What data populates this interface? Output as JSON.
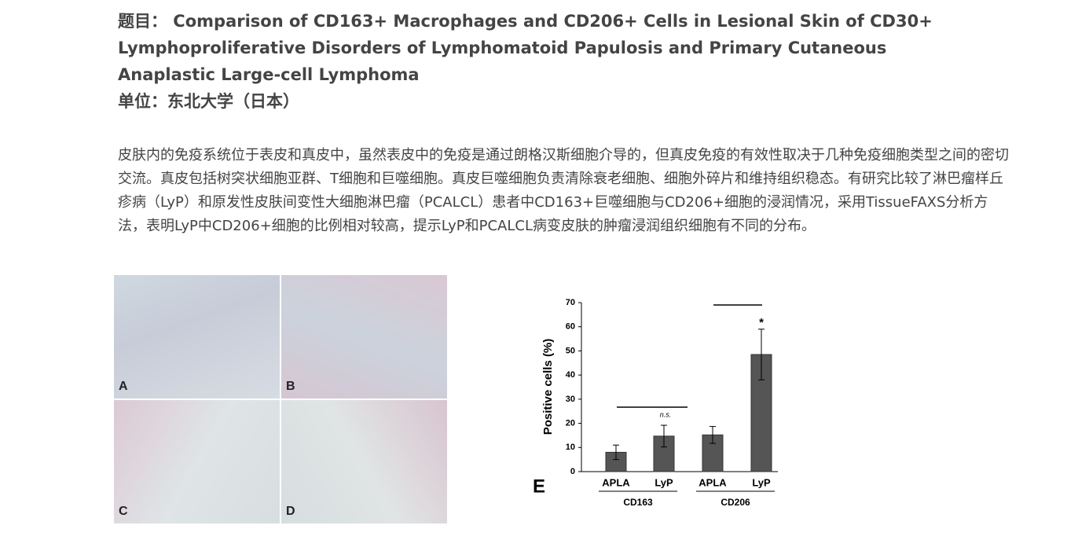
{
  "header": {
    "title": "题目： Comparison of CD163+ Macrophages and CD206+ Cells in Lesional Skin of CD30+ Lymphoproliferative Disorders of Lymphomatoid Papulosis and Primary Cutaneous Anaplastic Large-cell Lymphoma",
    "affiliation": "单位：东北大学（日本）"
  },
  "paragraph": "皮肤内的免疫系统位于表皮和真皮中，虽然表皮中的免疫是通过朗格汉斯细胞介导的，但真皮免疫的有效性取决于几种免疫细胞类型之间的密切交流。真皮包括树突状细胞亚群、T细胞和巨噬细胞。真皮巨噬细胞负责清除衰老细胞、细胞外碎片和维持组织稳态。有研究比较了淋巴瘤样丘疹病（LyP）和原发性皮肤间变性大细胞淋巴瘤（PCALCL）患者中CD163+巨噬细胞与CD206+细胞的浸润情况，采用TissueFAXS分析方法，表明LyP中CD206+细胞的比例相对较高，提示LyP和PCALCL病变皮肤的肿瘤浸润组织细胞有不同的分布。",
  "figure": {
    "panels": [
      "A",
      "B",
      "C",
      "D"
    ],
    "panel_label": "E"
  },
  "chart_data": {
    "type": "bar",
    "ylabel": "Positive cells (%)",
    "categories": [
      "APLA",
      "LyP",
      "APLA",
      "LyP"
    ],
    "groups": [
      "CD163",
      "CD206"
    ],
    "values": [
      8,
      14.7,
      15.2,
      48.5
    ],
    "errors": [
      3,
      4.5,
      3.5,
      10.5
    ],
    "color": "#555555",
    "ylim": [
      0,
      70
    ],
    "yticks": [
      0,
      10,
      20,
      30,
      40,
      50,
      60,
      70
    ],
    "annotations": [
      "n.s.",
      "*"
    ]
  }
}
